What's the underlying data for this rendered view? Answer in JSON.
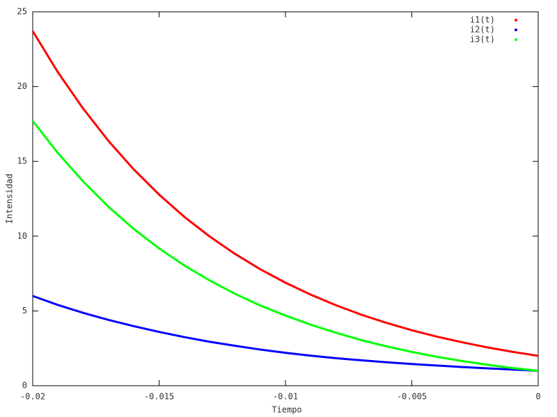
{
  "chart_data": {
    "type": "line",
    "x_label": "Tiempo",
    "y_label": "Intensidad",
    "x": [
      -0.02,
      -0.019,
      -0.018,
      -0.017,
      -0.016,
      -0.015,
      -0.014,
      -0.013,
      -0.012,
      -0.011,
      -0.01,
      -0.009,
      -0.008,
      -0.007,
      -0.006,
      -0.005,
      -0.004,
      -0.003,
      -0.002,
      -0.001,
      0
    ],
    "series": [
      {
        "name": "i1(t)",
        "color": "#ff0000",
        "values": [
          23.71,
          20.95,
          18.52,
          16.36,
          14.46,
          12.78,
          11.29,
          9.98,
          8.82,
          7.79,
          6.89,
          6.09,
          5.38,
          4.75,
          4.2,
          3.71,
          3.28,
          2.9,
          2.56,
          2.26,
          2
        ]
      },
      {
        "name": "i2(t)",
        "color": "#0000ff",
        "values": [
          6,
          5.4,
          4.87,
          4.4,
          3.98,
          3.6,
          3.25,
          2.94,
          2.67,
          2.42,
          2.2,
          2.01,
          1.84,
          1.7,
          1.57,
          1.45,
          1.35,
          1.25,
          1.16,
          1.08,
          1
        ]
      },
      {
        "name": "i3(t)",
        "color": "#00ff00",
        "values": [
          17.71,
          15.55,
          13.65,
          11.96,
          10.48,
          9.18,
          8.04,
          7.04,
          6.15,
          5.37,
          4.69,
          4.08,
          3.54,
          3.05,
          2.63,
          2.26,
          1.93,
          1.65,
          1.4,
          1.18,
          1
        ]
      }
    ],
    "xlim": [
      -0.02,
      0
    ],
    "xticks": [
      -0.02,
      -0.015,
      -0.01,
      -0.005,
      0
    ],
    "ylim": [
      0,
      25
    ],
    "yticks": [
      0,
      5,
      10,
      15,
      20,
      25
    ],
    "legend": "top-right"
  }
}
